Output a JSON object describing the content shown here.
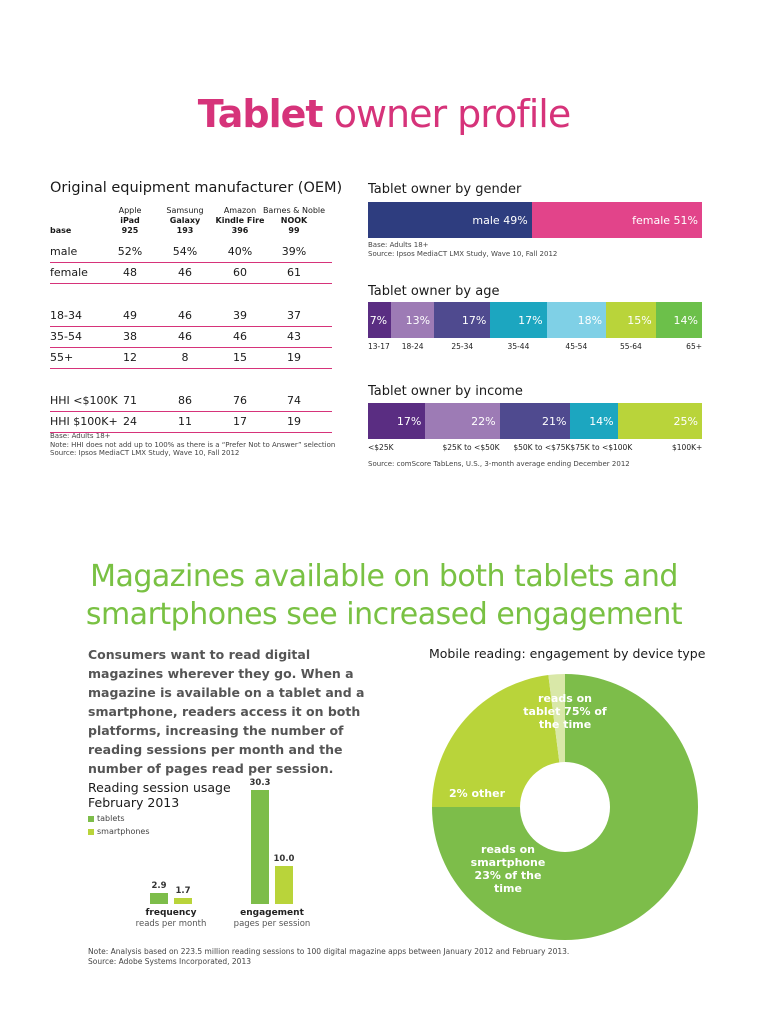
{
  "title": {
    "bold": "Tablet",
    "rest": " owner profile"
  },
  "oem": {
    "title": "Original equipment manufacturer (OEM)",
    "base_label": "base",
    "columns": [
      {
        "brand": "Apple",
        "product": "iPad",
        "base": "925"
      },
      {
        "brand": "Samsung",
        "product": "Galaxy",
        "base": "193"
      },
      {
        "brand": "Amazon",
        "product": "Kindle Fire",
        "base": "396"
      },
      {
        "brand": "Barnes & Noble",
        "product": "NOOK",
        "base": "99"
      }
    ],
    "rows": [
      {
        "label": "male",
        "values": [
          "52%",
          "54%",
          "40%",
          "39%"
        ]
      },
      {
        "label": "female",
        "values": [
          "48",
          "46",
          "60",
          "61"
        ]
      },
      {
        "label": "18-34",
        "values": [
          "49",
          "46",
          "39",
          "37"
        ]
      },
      {
        "label": "35-54",
        "values": [
          "38",
          "46",
          "46",
          "43"
        ]
      },
      {
        "label": "55+",
        "values": [
          "12",
          "8",
          "15",
          "19"
        ]
      },
      {
        "label": "HHI <$100K",
        "values": [
          "71",
          "86",
          "76",
          "74"
        ]
      },
      {
        "label": "HHI $100K+",
        "values": [
          "24",
          "11",
          "17",
          "19"
        ]
      }
    ],
    "notes": [
      "Base: Adults 18+",
      "Note: HHI does not add up to 100% as there is a “Prefer Not to Answer” selection",
      "Source: Ipsos MediaCT LMX Study, Wave 10, Fall 2012"
    ]
  },
  "gender": {
    "title": "Tablet owner by gender",
    "notes": [
      "Base: Adults 18+",
      "Source: Ipsos MediaCT LMX Study, Wave 10, Fall 2012"
    ]
  },
  "age": {
    "title": "Tablet owner by age"
  },
  "income": {
    "title": "Tablet owner by income",
    "note": "Source: comScore TabLens, U.S., 3-month average ending December 2012"
  },
  "magazines": {
    "title_line1": "Magazines available on both tablets and",
    "title_line2": "smartphones see increased engagement",
    "intro": "Consumers want to read digital magazines wherever they go. When a magazine is available on a tablet and a smartphone, readers access it on both platforms, increasing the number of reading sessions per month and the number of pages read per session.",
    "pie_title": "Mobile reading: engagement by device type",
    "usage_title_1": "Reading session usage",
    "usage_title_2": "February 2013",
    "footnote_1": "Note: Analysis based on 223.5 million reading sessions to 100 digital magazine apps between January 2012 and February 2013.",
    "footnote_2": "Source: Adobe Systems Incorporated, 2013"
  },
  "chart_data": [
    {
      "type": "bar",
      "title": "Tablet owner by gender",
      "categories": [
        "male",
        "female"
      ],
      "values": [
        49,
        51
      ],
      "labels": [
        "male 49%",
        "female 51%"
      ],
      "colors": [
        "#2e3d7f",
        "#e2448a"
      ]
    },
    {
      "type": "bar",
      "title": "Tablet owner by age",
      "categories": [
        "13-17",
        "18-24",
        "25-34",
        "35-44",
        "45-54",
        "55-64",
        "65+"
      ],
      "values": [
        7,
        13,
        17,
        17,
        18,
        15,
        14
      ],
      "labels": [
        "7%",
        "13%",
        "17%",
        "17%",
        "18%",
        "15%",
        "14%"
      ],
      "colors": [
        "#5a2d82",
        "#9d7bb5",
        "#4f4a8f",
        "#1ca6c0",
        "#7fd0e6",
        "#b9d43a",
        "#6cc04a"
      ]
    },
    {
      "type": "bar",
      "title": "Tablet owner by income",
      "categories": [
        "<$25K",
        "$25K to <$50K",
        "$50K to <$75K",
        "$75K to <$100K",
        "$100K+"
      ],
      "values": [
        17,
        22,
        21,
        14,
        25
      ],
      "labels": [
        "17%",
        "22%",
        "21%",
        "14%",
        "25%"
      ],
      "colors": [
        "#5a2d82",
        "#9d7bb5",
        "#4f4a8f",
        "#1ca6c0",
        "#b9d43a"
      ]
    },
    {
      "type": "pie",
      "title": "Mobile reading: engagement by device type",
      "categories": [
        "tablet",
        "smartphone",
        "other"
      ],
      "values": [
        75,
        23,
        2
      ],
      "labels": [
        "reads on tablet 75% of the time",
        "reads on smartphone 23% of the time",
        "2% other"
      ],
      "colors": [
        "#7dbd4a",
        "#b9d43a",
        "#d9e8a8"
      ]
    },
    {
      "type": "bar",
      "title": "Reading session usage February 2013",
      "categories": [
        "frequency",
        "engagement"
      ],
      "category_sublabels": [
        "reads per month",
        "pages per session"
      ],
      "series": [
        {
          "name": "tablets",
          "values": [
            2.9,
            30.3
          ],
          "color": "#7dbd4a"
        },
        {
          "name": "smartphones",
          "values": [
            1.7,
            10.0
          ],
          "color": "#b9d43a"
        }
      ],
      "value_labels": [
        [
          "2.9",
          "30.3"
        ],
        [
          "1.7",
          "10.0"
        ]
      ]
    }
  ]
}
